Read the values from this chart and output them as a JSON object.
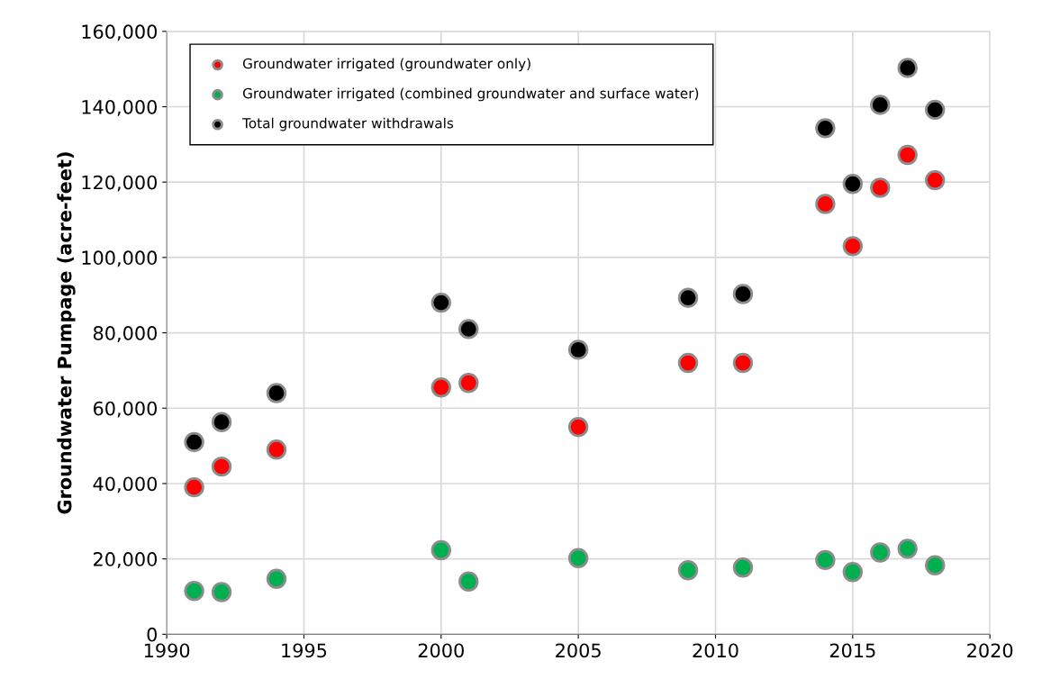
{
  "chart_data": {
    "type": "scatter",
    "ylabel": "Groundwater Pumpage (acre-feet)",
    "x": [
      1991,
      1992,
      1994,
      2000,
      2001,
      2005,
      2009,
      2011,
      2014,
      2015,
      2016,
      2017,
      2018
    ],
    "series": [
      {
        "name": "Groundwater irrigated (groundwater only)",
        "color": "#ff0000",
        "values": [
          39000,
          44500,
          49000,
          65500,
          66700,
          55000,
          72000,
          72000,
          114200,
          103000,
          118500,
          127200,
          120500
        ]
      },
      {
        "name": "Groundwater irrigated (combined groundwater and surface water)",
        "color": "#00b050",
        "values": [
          11500,
          11200,
          14700,
          22300,
          14000,
          20200,
          17000,
          17700,
          19700,
          16500,
          21700,
          22700,
          18300
        ]
      },
      {
        "name": "Total groundwater withdrawals",
        "color": "#000000",
        "values": [
          51000,
          56300,
          64000,
          88000,
          81000,
          75500,
          89300,
          90300,
          134300,
          119500,
          140500,
          150300,
          139200
        ]
      }
    ],
    "xlim": [
      1990,
      2020
    ],
    "xticks": [
      1990,
      1995,
      2000,
      2005,
      2010,
      2015,
      2020
    ],
    "ylim": [
      0,
      160000
    ],
    "yticks": [
      {
        "value": 0,
        "label": "0"
      },
      {
        "value": 20000,
        "label": "20,000"
      },
      {
        "value": 40000,
        "label": "40,000"
      },
      {
        "value": 60000,
        "label": "60,000"
      },
      {
        "value": 80000,
        "label": "80,000"
      },
      {
        "value": 100000,
        "label": "100,000"
      },
      {
        "value": 120000,
        "label": "120,000"
      },
      {
        "value": 140000,
        "label": "140,000"
      },
      {
        "value": 160000,
        "label": "160,000"
      }
    ],
    "grid": true,
    "legend": "top left",
    "marker": "circle"
  }
}
